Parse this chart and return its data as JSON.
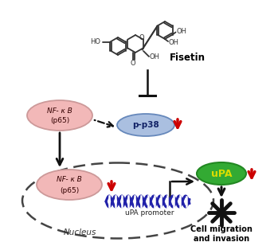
{
  "background_color": "#ffffff",
  "fisetin_label": "Fisetin",
  "pp38_label": "p-p38",
  "nfkb_label_line1": "NF- κ B",
  "nfkb_label_line2": "(p65)",
  "upa_label": "uPA",
  "upa_promoter_label": "uPA promoter",
  "nucleus_label": "Nucleus",
  "cell_migration_label": "Cell migration\nand invasion",
  "nfkb_color": "#f2b8b8",
  "pp38_color": "#aabfe0",
  "upa_color": "#33aa33",
  "red_arrow_color": "#cc0000",
  "dna_color": "#2222aa",
  "line_color": "#111111",
  "nucleus_border": "#444444",
  "nfkb_text_color": "#330000",
  "pp38_text_color": "#112266",
  "upa_text_color": "#dddd00"
}
